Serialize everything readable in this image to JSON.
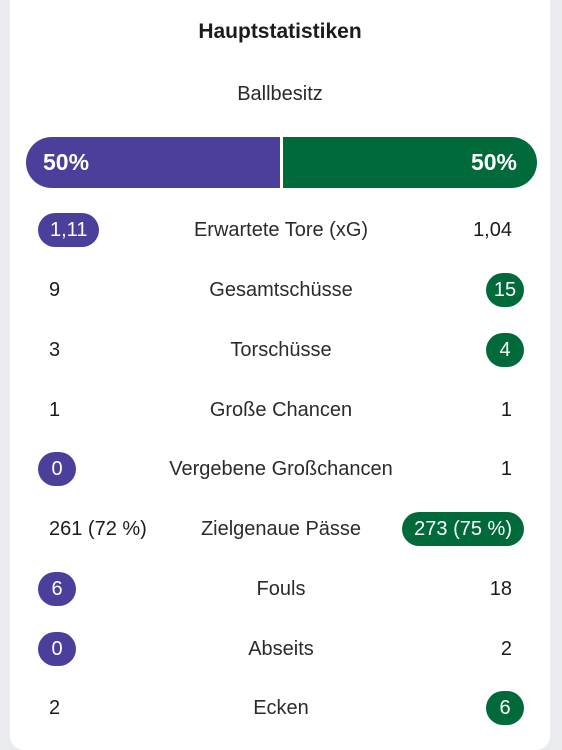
{
  "colors": {
    "home": "#4b3f9c",
    "away": "#006a3a"
  },
  "title": "Hauptstatistiken",
  "possession": {
    "label": "Ballbesitz",
    "home": "50%",
    "away": "50%",
    "home_fraction": 0.5
  },
  "stats": [
    {
      "label": "Erwartete Tore (xG)",
      "home": "1,11",
      "away": "1,04",
      "highlight": "home"
    },
    {
      "label": "Gesamtschüsse",
      "home": "9",
      "away": "15",
      "highlight": "away"
    },
    {
      "label": "Torschüsse",
      "home": "3",
      "away": "4",
      "highlight": "away"
    },
    {
      "label": "Große Chancen",
      "home": "1",
      "away": "1",
      "highlight": "none"
    },
    {
      "label": "Vergebene Großchancen",
      "home": "0",
      "away": "1",
      "highlight": "home"
    },
    {
      "label": "Zielgenaue Pässe",
      "home": "261 (72 %)",
      "away": "273 (75 %)",
      "highlight": "away"
    },
    {
      "label": "Fouls",
      "home": "6",
      "away": "18",
      "highlight": "home"
    },
    {
      "label": "Abseits",
      "home": "0",
      "away": "2",
      "highlight": "home"
    },
    {
      "label": "Ecken",
      "home": "2",
      "away": "6",
      "highlight": "away"
    }
  ]
}
